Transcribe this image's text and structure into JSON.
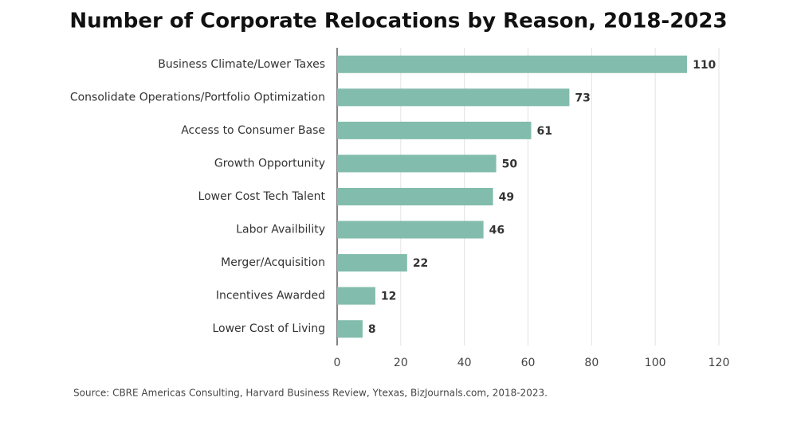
{
  "chart_data": {
    "type": "bar",
    "orientation": "horizontal",
    "title": "Number of Corporate Relocations by Reason, 2018-2023",
    "categories": [
      "Business Climate/Lower Taxes",
      "Consolidate Operations/Portfolio Optimization",
      "Access to Consumer Base",
      "Growth Opportunity",
      "Lower Cost Tech Talent",
      "Labor Availbility",
      "Merger/Acquisition",
      "Incentives Awarded",
      "Lower Cost of Living"
    ],
    "values": [
      110,
      73,
      61,
      50,
      49,
      46,
      22,
      12,
      8
    ],
    "color": "#82bcad",
    "xlim": [
      0,
      120
    ],
    "xticks": [
      0,
      20,
      40,
      60,
      80,
      100,
      120
    ],
    "grid": true,
    "source": "Source: CBRE Americas Consulting, Harvard Business Review, Ytexas, BizJournals.com, 2018-2023."
  }
}
